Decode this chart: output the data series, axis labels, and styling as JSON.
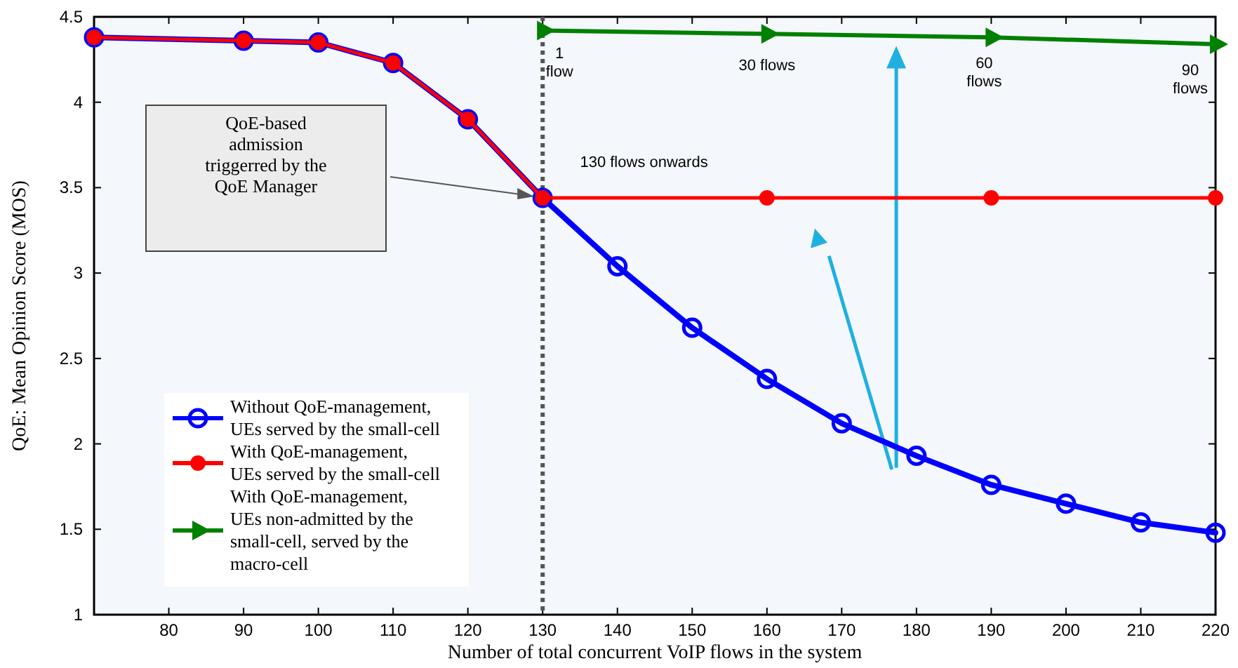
{
  "chart_data": {
    "type": "line",
    "xlabel": "Number of total concurrent VoIP flows in the system",
    "ylabel": "QoE: Mean Opinion Score (MOS)",
    "xlim": [
      70,
      220
    ],
    "xticks": [
      80,
      90,
      100,
      110,
      120,
      130,
      140,
      150,
      160,
      170,
      180,
      190,
      200,
      210,
      220
    ],
    "ylim": [
      1,
      4.5
    ],
    "yticks": [
      1,
      1.5,
      2,
      2.5,
      3,
      3.5,
      4,
      4.5
    ],
    "grid": false,
    "legend": "bottom left",
    "series": [
      {
        "name": "Without QoE-management,\nUEs served by the small-cell",
        "color": "#0000ff",
        "marker": "circle",
        "x": [
          70,
          90,
          100,
          110,
          120,
          130,
          140,
          150,
          160,
          170,
          180,
          190,
          200,
          210,
          220
        ],
        "values": [
          4.38,
          4.36,
          4.35,
          4.23,
          3.9,
          3.44,
          3.04,
          2.68,
          2.38,
          2.12,
          1.93,
          1.76,
          1.65,
          1.54,
          1.48
        ]
      },
      {
        "name": "With QoE-management,\nUEs served by the small-cell",
        "color": "#ff0000",
        "marker": "circle",
        "x": [
          70,
          90,
          100,
          110,
          120,
          130,
          160,
          190,
          220
        ],
        "values": [
          4.38,
          4.36,
          4.35,
          4.23,
          3.9,
          3.44,
          3.44,
          3.44,
          3.44
        ]
      },
      {
        "name": "With QoE-management,\nUEs non-admitted by the\nsmall-cell, served by the\nmacro-cell",
        "color": "#008000",
        "marker": "triangle",
        "x": [
          130,
          160,
          190,
          220
        ],
        "values": [
          4.42,
          4.4,
          4.38,
          4.34
        ]
      }
    ],
    "ref_lines": [
      {
        "axis": "x",
        "value": 130,
        "color": "#555555",
        "line_style": "dotted"
      }
    ],
    "annotations": [
      "QoE-based\nadmission\ntriggerred by the\nQoE Manager",
      "130 flows onwards",
      {
        "text": "1\nflow",
        "x": 130,
        "y": 4.42
      },
      {
        "text": "30 flows",
        "x": 160,
        "y": 4.4
      },
      {
        "text": "60\nflows",
        "x": 190,
        "y": 4.38
      },
      {
        "text": "90\nflows",
        "x": 220,
        "y": 4.34
      }
    ]
  }
}
